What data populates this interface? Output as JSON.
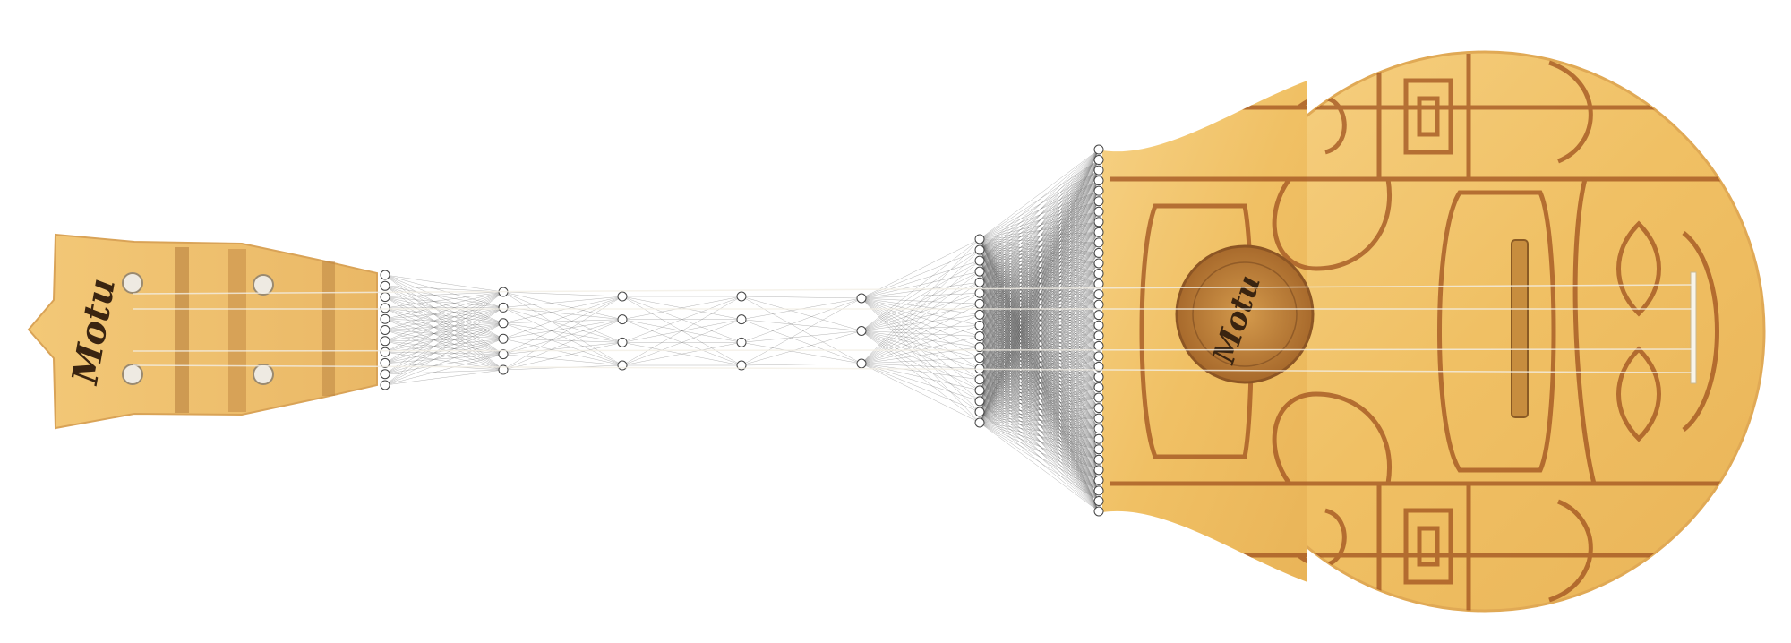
{
  "headstock": {
    "brand": "Motu"
  },
  "soundhole": {
    "brand": "Motu"
  }
}
